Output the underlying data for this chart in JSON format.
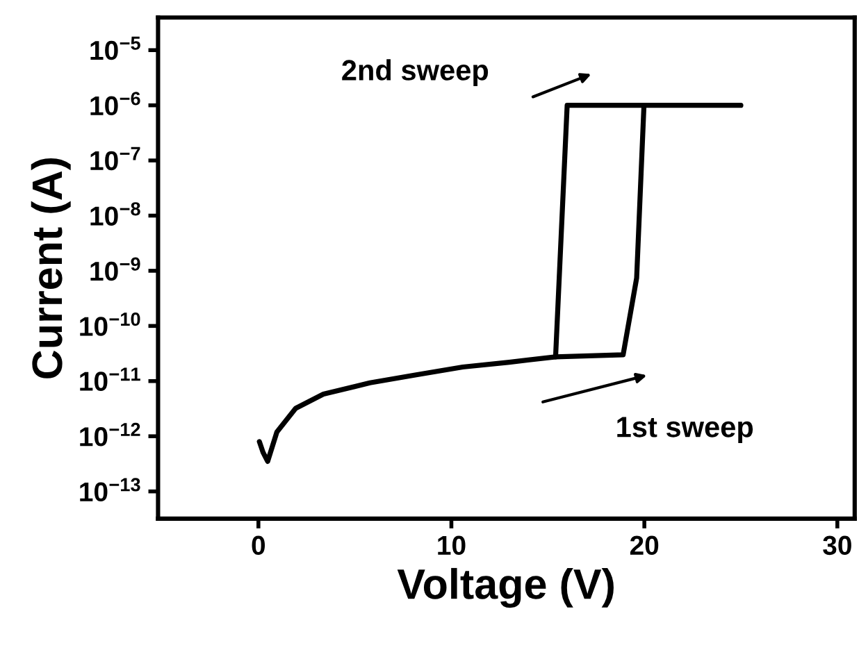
{
  "chart_data": {
    "type": "line",
    "xlabel": "Voltage (V)",
    "ylabel": "Current (A)",
    "log": "y",
    "xlim": [
      -5.2,
      30.9
    ],
    "xticks": [
      0,
      10,
      20,
      30
    ],
    "ylim": [
      3.2e-14,
      3.9e-05
    ],
    "yticks": [
      {
        "value": 1e-13,
        "label": "10$^{−13}$"
      },
      {
        "value": 1e-12,
        "label": "10$^{−12}$"
      },
      {
        "value": 1e-11,
        "label": "10$^{−11}$"
      },
      {
        "value": 1e-10,
        "label": "10$^{−10}$"
      },
      {
        "value": 1e-09,
        "label": "10$^{−9}$"
      },
      {
        "value": 1e-08,
        "label": "10$^{−8}$"
      },
      {
        "value": 1e-07,
        "label": "10$^{−7}$"
      },
      {
        "value": 1e-06,
        "label": "10$^{−6}$"
      },
      {
        "value": 1e-05,
        "label": "10$^{−5}$"
      }
    ],
    "grid": false,
    "legend": false,
    "marker": "none",
    "line_style": "solid",
    "series": [
      {
        "color": "#000000",
        "x": [
          0.05,
          0.24,
          0.48,
          0.96,
          1.93,
          3.37,
          5.78,
          8.18,
          10.59,
          13.0,
          15.4,
          18.9,
          19.6,
          19.98,
          25.0
        ],
        "values": [
          8e-13,
          5.1e-13,
          3.5e-13,
          1.2e-12,
          3.2e-12,
          5.8e-12,
          9.3e-12,
          1.3e-11,
          1.8e-11,
          2.2e-11,
          2.75e-11,
          3e-11,
          7.4e-10,
          1e-06,
          1e-06
        ]
      },
      {
        "color": "#000000",
        "x": [
          15.4,
          16.0,
          20.0
        ],
        "values": [
          2.75e-11,
          1e-06,
          1e-06
        ]
      }
    ],
    "annotations": [
      "2nd sweep",
      "1st sweep"
    ]
  }
}
